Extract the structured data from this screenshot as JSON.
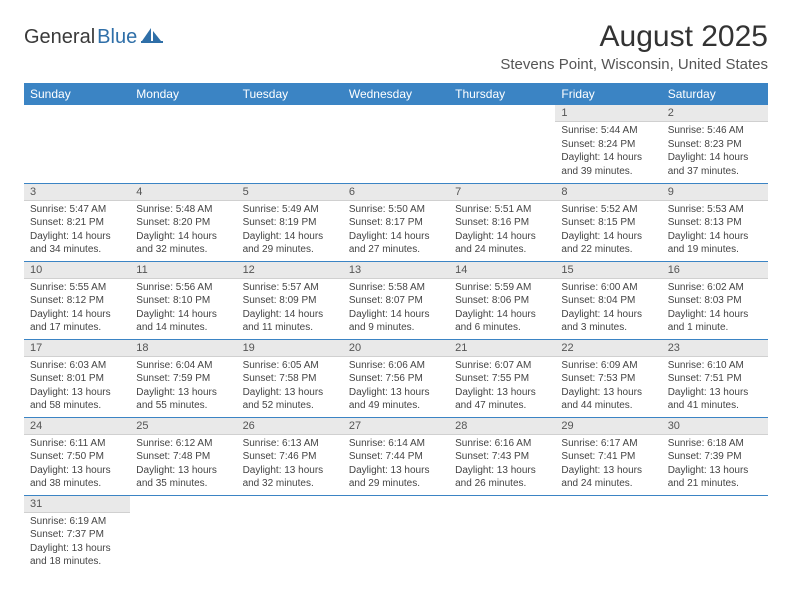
{
  "logo": {
    "text1": "General",
    "text2": "Blue"
  },
  "title": "August 2025",
  "location": "Stevens Point, Wisconsin, United States",
  "colors": {
    "header_bg": "#3b84c4",
    "header_text": "#ffffff",
    "daynum_bg": "#e9e9e9",
    "daynum_text": "#555555",
    "border": "#3b84c4",
    "body_text": "#444444",
    "logo_gray": "#3a3a3a",
    "logo_blue": "#2f6fa8"
  },
  "fonts": {
    "title_size_pt": 22,
    "location_size_pt": 11,
    "dayhead_size_pt": 9,
    "daynum_size_pt": 8,
    "body_size_pt": 7.5
  },
  "weekdays": [
    "Sunday",
    "Monday",
    "Tuesday",
    "Wednesday",
    "Thursday",
    "Friday",
    "Saturday"
  ],
  "weeks": [
    [
      null,
      null,
      null,
      null,
      null,
      {
        "n": "1",
        "sunrise": "5:44 AM",
        "sunset": "8:24 PM",
        "dh": "14",
        "dm": "39"
      },
      {
        "n": "2",
        "sunrise": "5:46 AM",
        "sunset": "8:23 PM",
        "dh": "14",
        "dm": "37"
      }
    ],
    [
      {
        "n": "3",
        "sunrise": "5:47 AM",
        "sunset": "8:21 PM",
        "dh": "14",
        "dm": "34"
      },
      {
        "n": "4",
        "sunrise": "5:48 AM",
        "sunset": "8:20 PM",
        "dh": "14",
        "dm": "32"
      },
      {
        "n": "5",
        "sunrise": "5:49 AM",
        "sunset": "8:19 PM",
        "dh": "14",
        "dm": "29"
      },
      {
        "n": "6",
        "sunrise": "5:50 AM",
        "sunset": "8:17 PM",
        "dh": "14",
        "dm": "27"
      },
      {
        "n": "7",
        "sunrise": "5:51 AM",
        "sunset": "8:16 PM",
        "dh": "14",
        "dm": "24"
      },
      {
        "n": "8",
        "sunrise": "5:52 AM",
        "sunset": "8:15 PM",
        "dh": "14",
        "dm": "22"
      },
      {
        "n": "9",
        "sunrise": "5:53 AM",
        "sunset": "8:13 PM",
        "dh": "14",
        "dm": "19"
      }
    ],
    [
      {
        "n": "10",
        "sunrise": "5:55 AM",
        "sunset": "8:12 PM",
        "dh": "14",
        "dm": "17"
      },
      {
        "n": "11",
        "sunrise": "5:56 AM",
        "sunset": "8:10 PM",
        "dh": "14",
        "dm": "14"
      },
      {
        "n": "12",
        "sunrise": "5:57 AM",
        "sunset": "8:09 PM",
        "dh": "14",
        "dm": "11"
      },
      {
        "n": "13",
        "sunrise": "5:58 AM",
        "sunset": "8:07 PM",
        "dh": "14",
        "dm": "9"
      },
      {
        "n": "14",
        "sunrise": "5:59 AM",
        "sunset": "8:06 PM",
        "dh": "14",
        "dm": "6"
      },
      {
        "n": "15",
        "sunrise": "6:00 AM",
        "sunset": "8:04 PM",
        "dh": "14",
        "dm": "3"
      },
      {
        "n": "16",
        "sunrise": "6:02 AM",
        "sunset": "8:03 PM",
        "dh": "14",
        "dm": "1",
        "dm_label": "minute"
      }
    ],
    [
      {
        "n": "17",
        "sunrise": "6:03 AM",
        "sunset": "8:01 PM",
        "dh": "13",
        "dm": "58"
      },
      {
        "n": "18",
        "sunrise": "6:04 AM",
        "sunset": "7:59 PM",
        "dh": "13",
        "dm": "55"
      },
      {
        "n": "19",
        "sunrise": "6:05 AM",
        "sunset": "7:58 PM",
        "dh": "13",
        "dm": "52"
      },
      {
        "n": "20",
        "sunrise": "6:06 AM",
        "sunset": "7:56 PM",
        "dh": "13",
        "dm": "49"
      },
      {
        "n": "21",
        "sunrise": "6:07 AM",
        "sunset": "7:55 PM",
        "dh": "13",
        "dm": "47"
      },
      {
        "n": "22",
        "sunrise": "6:09 AM",
        "sunset": "7:53 PM",
        "dh": "13",
        "dm": "44"
      },
      {
        "n": "23",
        "sunrise": "6:10 AM",
        "sunset": "7:51 PM",
        "dh": "13",
        "dm": "41"
      }
    ],
    [
      {
        "n": "24",
        "sunrise": "6:11 AM",
        "sunset": "7:50 PM",
        "dh": "13",
        "dm": "38"
      },
      {
        "n": "25",
        "sunrise": "6:12 AM",
        "sunset": "7:48 PM",
        "dh": "13",
        "dm": "35"
      },
      {
        "n": "26",
        "sunrise": "6:13 AM",
        "sunset": "7:46 PM",
        "dh": "13",
        "dm": "32"
      },
      {
        "n": "27",
        "sunrise": "6:14 AM",
        "sunset": "7:44 PM",
        "dh": "13",
        "dm": "29"
      },
      {
        "n": "28",
        "sunrise": "6:16 AM",
        "sunset": "7:43 PM",
        "dh": "13",
        "dm": "26"
      },
      {
        "n": "29",
        "sunrise": "6:17 AM",
        "sunset": "7:41 PM",
        "dh": "13",
        "dm": "24"
      },
      {
        "n": "30",
        "sunrise": "6:18 AM",
        "sunset": "7:39 PM",
        "dh": "13",
        "dm": "21"
      }
    ],
    [
      {
        "n": "31",
        "sunrise": "6:19 AM",
        "sunset": "7:37 PM",
        "dh": "13",
        "dm": "18"
      },
      null,
      null,
      null,
      null,
      null,
      null
    ]
  ]
}
